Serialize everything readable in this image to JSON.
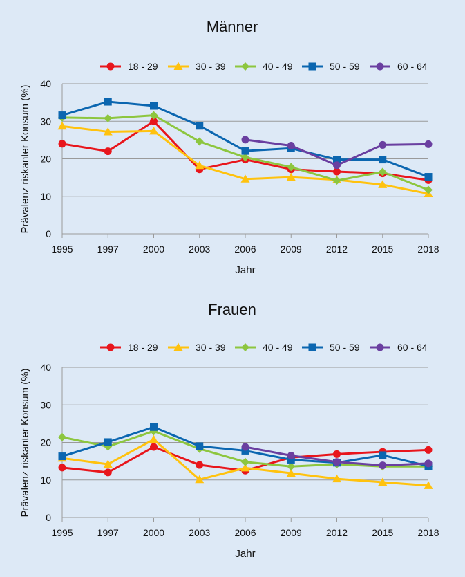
{
  "chart_data": [
    {
      "type": "line",
      "title": "Männer",
      "xlabel": "Jahr",
      "ylabel": "Prävalenz riskanter Konsum (%)",
      "ylim": [
        0,
        40
      ],
      "yticks": [
        "0",
        "10",
        "20",
        "30",
        "40"
      ],
      "categories": [
        "1995",
        "1997",
        "2000",
        "2003",
        "2006",
        "2009",
        "2012",
        "2015",
        "2018"
      ],
      "legend_position": "top",
      "series": [
        {
          "name": "18 - 29",
          "color": "#e8161c",
          "marker": "circle",
          "values": [
            24.0,
            22.0,
            30.0,
            17.2,
            19.8,
            17.2,
            16.6,
            16.1,
            14.3
          ]
        },
        {
          "name": "30 - 39",
          "color": "#ffc20e",
          "marker": "triangle",
          "values": [
            28.7,
            27.2,
            27.4,
            18.2,
            14.6,
            15.1,
            14.4,
            13.1,
            10.7
          ]
        },
        {
          "name": "40 - 49",
          "color": "#8dc63f",
          "marker": "diamond",
          "values": [
            31.0,
            30.8,
            31.6,
            24.6,
            20.4,
            17.8,
            14.2,
            16.5,
            11.7
          ]
        },
        {
          "name": "50 - 59",
          "color": "#0b66b0",
          "marker": "square",
          "values": [
            31.6,
            35.2,
            34.1,
            28.8,
            22.1,
            22.8,
            19.8,
            19.8,
            15.2
          ]
        },
        {
          "name": "60 - 64",
          "color": "#6a3fa0",
          "marker": "circle",
          "values": [
            null,
            null,
            null,
            null,
            25.1,
            23.5,
            18.3,
            23.7,
            23.9
          ]
        }
      ]
    },
    {
      "type": "line",
      "title": "Frauen",
      "xlabel": "Jahr",
      "ylabel": "Prävalenz riskanter Konsum (%)",
      "ylim": [
        0,
        40
      ],
      "yticks": [
        "0",
        "10",
        "20",
        "30",
        "40"
      ],
      "categories": [
        "1995",
        "1997",
        "2000",
        "2003",
        "2006",
        "2009",
        "2012",
        "2015",
        "2018"
      ],
      "legend_position": "top",
      "series": [
        {
          "name": "18 - 29",
          "color": "#e8161c",
          "marker": "circle",
          "values": [
            13.3,
            12.0,
            18.8,
            14.0,
            12.5,
            16.0,
            16.9,
            17.5,
            18.0
          ]
        },
        {
          "name": "30 - 39",
          "color": "#ffc20e",
          "marker": "triangle",
          "values": [
            15.8,
            14.2,
            20.8,
            10.1,
            13.2,
            11.8,
            10.3,
            9.4,
            8.5
          ]
        },
        {
          "name": "40 - 49",
          "color": "#8dc63f",
          "marker": "diamond",
          "values": [
            21.4,
            18.9,
            23.0,
            18.3,
            14.8,
            13.6,
            14.2,
            13.6,
            13.6
          ]
        },
        {
          "name": "50 - 59",
          "color": "#0b66b0",
          "marker": "square",
          "values": [
            16.3,
            20.1,
            24.1,
            19.0,
            17.8,
            15.4,
            14.6,
            16.6,
            13.7
          ]
        },
        {
          "name": "60 - 64",
          "color": "#6a3fa0",
          "marker": "circle",
          "values": [
            null,
            null,
            null,
            null,
            18.8,
            16.5,
            14.8,
            13.9,
            14.4
          ]
        }
      ]
    }
  ]
}
